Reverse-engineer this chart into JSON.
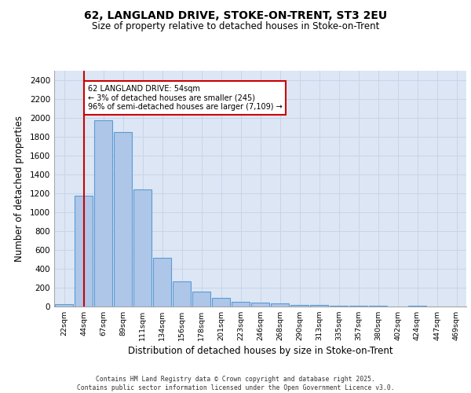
{
  "title1": "62, LANGLAND DRIVE, STOKE-ON-TRENT, ST3 2EU",
  "title2": "Size of property relative to detached houses in Stoke-on-Trent",
  "xlabel": "Distribution of detached houses by size in Stoke-on-Trent",
  "ylabel": "Number of detached properties",
  "categories": [
    "22sqm",
    "44sqm",
    "67sqm",
    "89sqm",
    "111sqm",
    "134sqm",
    "156sqm",
    "178sqm",
    "201sqm",
    "223sqm",
    "246sqm",
    "268sqm",
    "290sqm",
    "313sqm",
    "335sqm",
    "357sqm",
    "380sqm",
    "402sqm",
    "424sqm",
    "447sqm",
    "469sqm"
  ],
  "values": [
    25,
    1175,
    1975,
    1850,
    1240,
    515,
    270,
    155,
    90,
    50,
    45,
    35,
    20,
    15,
    5,
    5,
    5,
    0,
    5,
    0,
    0
  ],
  "bar_color": "#aec6e8",
  "bar_edge_color": "#5b9bd5",
  "grid_color": "#c8d4e8",
  "bg_color": "#dce6f5",
  "vline_x_idx": 1,
  "vline_color": "#cc0000",
  "annotation_line1": "62 LANGLAND DRIVE: 54sqm",
  "annotation_line2": "← 3% of detached houses are smaller (245)",
  "annotation_line3": "96% of semi-detached houses are larger (7,109) →",
  "annotation_box_color": "#cc0000",
  "footer1": "Contains HM Land Registry data © Crown copyright and database right 2025.",
  "footer2": "Contains public sector information licensed under the Open Government Licence v3.0.",
  "ylim": [
    0,
    2500
  ],
  "yticks": [
    0,
    200,
    400,
    600,
    800,
    1000,
    1200,
    1400,
    1600,
    1800,
    2000,
    2200,
    2400
  ]
}
